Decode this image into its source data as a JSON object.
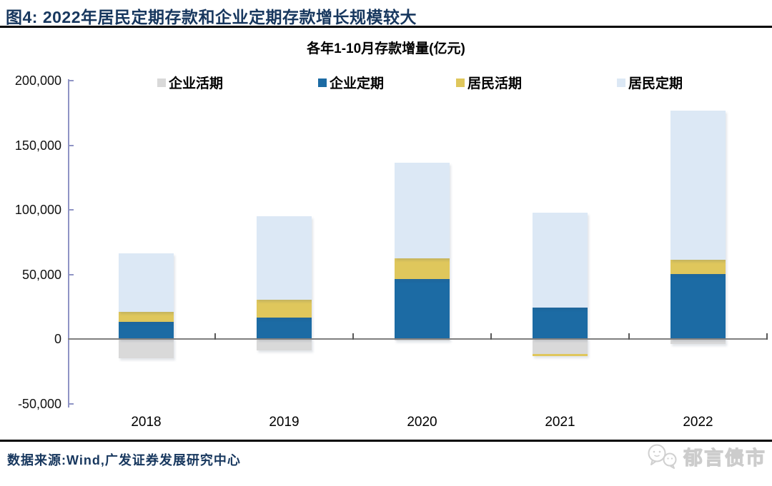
{
  "header": {
    "title": "图4:  2022年居民定期存款和企业定期存款增长规模较大"
  },
  "chart_data": {
    "type": "bar",
    "stacked": true,
    "title": "各年1-10月存款增量(亿元)",
    "unit": "亿元",
    "categories": [
      "2018",
      "2019",
      "2020",
      "2021",
      "2022"
    ],
    "series": [
      {
        "name": "企业活期",
        "color": "#D9D9D9",
        "values": [
          -15000,
          -9000,
          -1000,
          -11500,
          -4000
        ]
      },
      {
        "name": "企业定期",
        "color": "#1C6BA4",
        "values": [
          13000,
          16500,
          46500,
          24500,
          50500
        ]
      },
      {
        "name": "居民活期",
        "color": "#DFC75C",
        "values": [
          8000,
          14000,
          16000,
          -1500,
          11000
        ]
      },
      {
        "name": "居民定期",
        "color": "#DCE8F5",
        "values": [
          45500,
          64500,
          74000,
          73500,
          115500
        ]
      }
    ],
    "ylim": [
      -50000,
      200000
    ],
    "y_ticks": [
      200000,
      150000,
      100000,
      50000,
      0,
      -50000
    ],
    "y_tick_labels": [
      "200,000",
      "150,000",
      "100,000",
      "50,000",
      "0",
      "-50,000"
    ],
    "legend_position": "top",
    "grid": false,
    "axis_color": "#8F94C5",
    "zero_line_color": "#7F7F7F"
  },
  "footer": {
    "source": "数据来源:Wind,广发证券发展研究中心",
    "watermark": "郁言债市"
  }
}
